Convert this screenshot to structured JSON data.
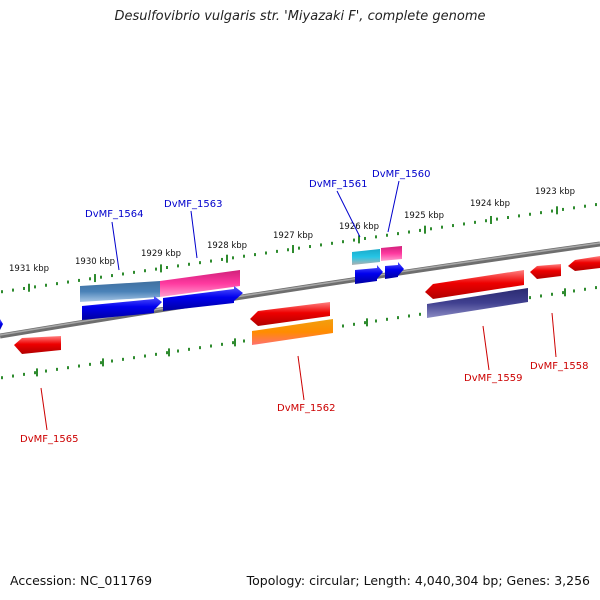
{
  "title": "Desulfovibrio vulgaris str. 'Miyazaki F', complete genome",
  "footer": {
    "accession": "Accession: NC_011769",
    "summary": "Topology: circular; Length: 4,040,304 bp; Genes: 3,256"
  },
  "colors": {
    "backbone": "#808080",
    "tick": "#2e8b2e",
    "forward_label": "#0000cc",
    "reverse_label": "#cc0000"
  },
  "upper_scale_labels": [
    "1931 kbp",
    "1930 kbp",
    "1929 kbp",
    "1928 kbp",
    "1927 kbp",
    "1926 kbp",
    "1925 kbp",
    "1924 kbp",
    "1923 kbp"
  ],
  "forward_gene_labels": [
    "DvMF_1564",
    "DvMF_1563",
    "DvMF_1561",
    "DvMF_1560"
  ],
  "reverse_gene_labels": [
    "DvMF_1565",
    "DvMF_1562",
    "DvMF_1559",
    "DvMF_1558"
  ]
}
